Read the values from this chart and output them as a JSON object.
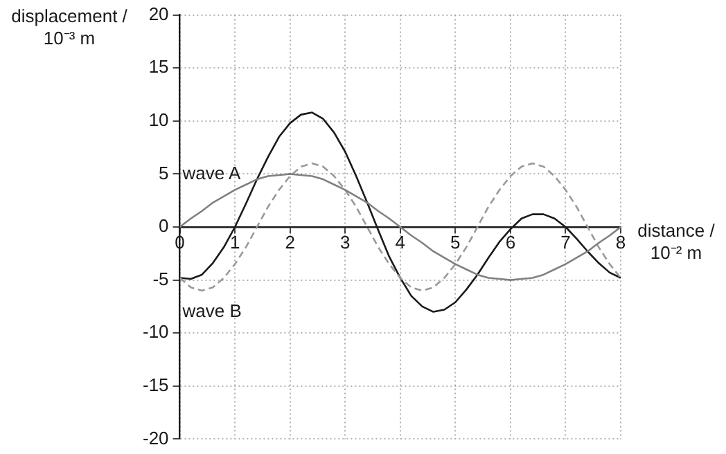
{
  "chart_data": {
    "type": "line",
    "xlabel": "distance / 10⁻² m",
    "ylabel": "displacement / 10⁻³ m",
    "x": [
      0,
      0.2,
      0.4,
      0.6,
      0.8,
      1,
      1.2,
      1.4,
      1.6,
      1.8,
      2,
      2.2,
      2.4,
      2.6,
      2.8,
      3,
      3.2,
      3.4,
      3.6,
      3.8,
      4,
      4.2,
      4.4,
      4.6,
      4.8,
      5,
      5.2,
      5.4,
      5.6,
      5.8,
      6,
      6.2,
      6.4,
      6.6,
      6.8,
      7,
      7.2,
      7.4,
      7.6,
      7.8,
      8
    ],
    "series": [
      {
        "color": "#808080",
        "line_style": "solid",
        "values": [
          0,
          0.8,
          1.5,
          2.3,
          2.9,
          3.5,
          4,
          4.5,
          4.8,
          4.9,
          5,
          4.9,
          4.8,
          4.5,
          4,
          3.5,
          2.9,
          2.3,
          1.5,
          0.8,
          0,
          -0.8,
          -1.5,
          -2.3,
          -2.9,
          -3.5,
          -4,
          -4.5,
          -4.8,
          -4.9,
          -5,
          -4.9,
          -4.8,
          -4.5,
          -4,
          -3.5,
          -2.9,
          -2.3,
          -1.5,
          -0.8,
          0
        ]
      },
      {
        "color": "#999999",
        "line_style": "dashed",
        "values": [
          -4.8,
          -5.7,
          -6,
          -5.7,
          -4.8,
          -3.5,
          -1.9,
          0,
          1.9,
          3.5,
          4.8,
          5.7,
          6,
          5.7,
          4.8,
          3.5,
          1.9,
          0,
          -1.9,
          -3.5,
          -4.8,
          -5.7,
          -6,
          -5.7,
          -4.8,
          -3.5,
          -1.9,
          0,
          1.9,
          3.5,
          4.8,
          5.7,
          6,
          5.7,
          4.8,
          3.5,
          1.9,
          0,
          -1.9,
          -3.5,
          -4.8
        ]
      },
      {
        "color": "#1a1a1a",
        "line_style": "solid",
        "values": [
          -4.8,
          -4.9,
          -4.5,
          -3.4,
          -1.9,
          0,
          2.2,
          4.5,
          6.6,
          8.5,
          9.8,
          10.6,
          10.8,
          10.2,
          8.9,
          7.1,
          4.8,
          2.3,
          -0.3,
          -2.8,
          -4.8,
          -6.5,
          -7.5,
          -8,
          -7.8,
          -7.1,
          -5.9,
          -4.5,
          -2.9,
          -1.4,
          -0.2,
          0.8,
          1.2,
          1.2,
          0.8,
          0,
          -1.1,
          -2.3,
          -3.4,
          -4.3,
          -4.8
        ]
      }
    ],
    "xlim": [
      0,
      8
    ],
    "xticks": [
      0,
      1,
      2,
      3,
      4,
      5,
      6,
      7,
      8
    ],
    "ylim": [
      -20,
      20
    ],
    "yticks": [
      -20,
      -15,
      -10,
      -5,
      0,
      5,
      10,
      15,
      20
    ],
    "grid": true,
    "legend": false,
    "marker": "none",
    "annotations": [
      "wave A",
      "wave B"
    ]
  }
}
